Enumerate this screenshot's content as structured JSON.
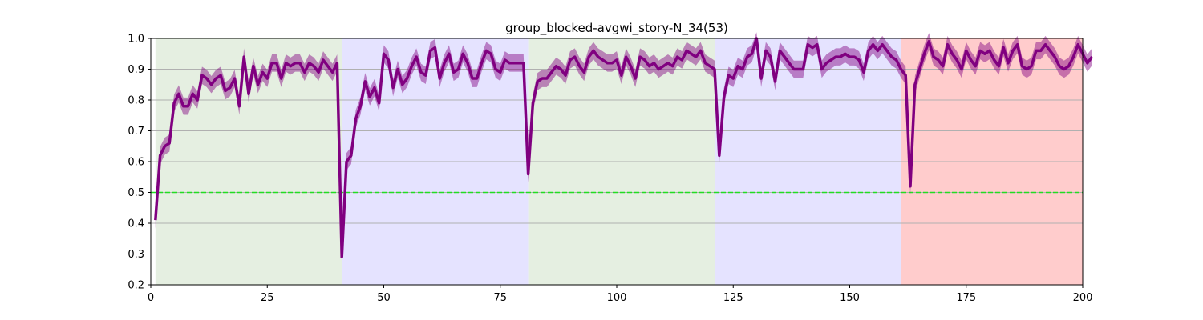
{
  "chart_data": {
    "type": "line",
    "title": "group_blocked-avgwi_story-N_34(53)",
    "xlabel": "",
    "ylabel": "",
    "xlim": [
      0,
      200
    ],
    "ylim": [
      0.2,
      1.0
    ],
    "x_ticks": [
      0,
      25,
      50,
      75,
      100,
      125,
      150,
      175,
      200
    ],
    "y_ticks": [
      0.2,
      0.3,
      0.4,
      0.5,
      0.6,
      0.7,
      0.8,
      0.9,
      1.0
    ],
    "x_tick_labels": [
      "0",
      "25",
      "50",
      "75",
      "100",
      "125",
      "150",
      "175",
      "200"
    ],
    "y_tick_labels": [
      "0.2",
      "0.3",
      "0.4",
      "0.5",
      "0.6",
      "0.7",
      "0.8",
      "0.9",
      "1.0"
    ],
    "grid": "horizontal",
    "background_bands": [
      {
        "x_start": 1,
        "x_end": 41,
        "color": "#e5efe1"
      },
      {
        "x_start": 41,
        "x_end": 81,
        "color": "#e5e3ff"
      },
      {
        "x_start": 81,
        "x_end": 121,
        "color": "#e5efe1"
      },
      {
        "x_start": 121,
        "x_end": 161,
        "color": "#e5e3ff"
      },
      {
        "x_start": 161,
        "x_end": 200,
        "color": "#ffcccc"
      }
    ],
    "reference_line": {
      "y": 0.5,
      "color": "#22dd22",
      "style": "dashed"
    },
    "series": [
      {
        "color": "#800080",
        "band_color": "#800080",
        "x_start": 1,
        "values": [
          0.41,
          0.62,
          0.65,
          0.66,
          0.79,
          0.82,
          0.78,
          0.78,
          0.82,
          0.8,
          0.88,
          0.87,
          0.85,
          0.87,
          0.88,
          0.83,
          0.84,
          0.87,
          0.78,
          0.94,
          0.82,
          0.91,
          0.85,
          0.89,
          0.87,
          0.92,
          0.92,
          0.87,
          0.92,
          0.91,
          0.92,
          0.92,
          0.89,
          0.92,
          0.91,
          0.89,
          0.93,
          0.91,
          0.89,
          0.92,
          0.29,
          0.6,
          0.62,
          0.74,
          0.78,
          0.86,
          0.81,
          0.84,
          0.79,
          0.95,
          0.93,
          0.84,
          0.9,
          0.85,
          0.87,
          0.91,
          0.94,
          0.89,
          0.88,
          0.96,
          0.97,
          0.87,
          0.92,
          0.95,
          0.89,
          0.9,
          0.95,
          0.92,
          0.87,
          0.87,
          0.92,
          0.96,
          0.95,
          0.9,
          0.89,
          0.93,
          0.92,
          0.92,
          0.92,
          0.92,
          0.56,
          0.79,
          0.86,
          0.87,
          0.87,
          0.89,
          0.91,
          0.9,
          0.88,
          0.93,
          0.94,
          0.91,
          0.89,
          0.94,
          0.96,
          0.94,
          0.93,
          0.92,
          0.92,
          0.93,
          0.88,
          0.94,
          0.91,
          0.87,
          0.94,
          0.93,
          0.91,
          0.92,
          0.9,
          0.91,
          0.92,
          0.91,
          0.94,
          0.93,
          0.96,
          0.95,
          0.94,
          0.96,
          0.92,
          0.91,
          0.9,
          0.62,
          0.81,
          0.88,
          0.87,
          0.91,
          0.9,
          0.94,
          0.95,
          1.0,
          0.87,
          0.96,
          0.94,
          0.86,
          0.96,
          0.94,
          0.92,
          0.9,
          0.9,
          0.9,
          0.98,
          0.97,
          0.98,
          0.9,
          0.92,
          0.93,
          0.94,
          0.94,
          0.95,
          0.94,
          0.94,
          0.93,
          0.89,
          0.96,
          0.98,
          0.96,
          0.98,
          0.96,
          0.94,
          0.93,
          0.9,
          0.88,
          0.52,
          0.85,
          0.9,
          0.95,
          0.99,
          0.94,
          0.93,
          0.91,
          0.98,
          0.95,
          0.93,
          0.9,
          0.96,
          0.93,
          0.91,
          0.96,
          0.95,
          0.96,
          0.93,
          0.91,
          0.97,
          0.92,
          0.96,
          0.98,
          0.91,
          0.9,
          0.91,
          0.96,
          0.96,
          0.98,
          0.96,
          0.94,
          0.91,
          0.9,
          0.91,
          0.94,
          0.98,
          0.95,
          0.92,
          0.94
        ],
        "band_halfwidth": 0.028
      }
    ]
  }
}
